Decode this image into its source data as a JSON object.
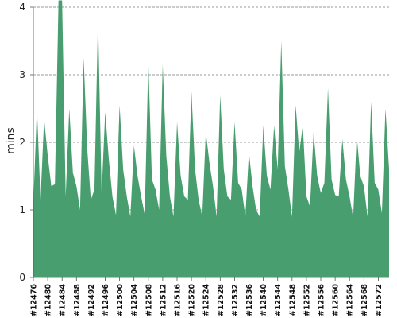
{
  "chart_data": {
    "type": "area",
    "ylabel": "mins",
    "xlabel": "",
    "title": "",
    "ylim": [
      0,
      4
    ],
    "yticks": [
      0,
      1,
      2,
      3,
      4
    ],
    "grid": "horizontal dashed",
    "legend": "none",
    "series_color": "#489e6e",
    "x_tick_labels": [
      "#12476",
      "#12480",
      "#12484",
      "#12488",
      "#12492",
      "#12496",
      "#12500",
      "#12504",
      "#12508",
      "#12512",
      "#12516",
      "#12520",
      "#12524",
      "#12528",
      "#12532",
      "#12536",
      "#12540",
      "#12544",
      "#12548",
      "#12552",
      "#12556",
      "#12560",
      "#12564",
      "#12568",
      "#12572"
    ],
    "x_range": [
      12476,
      12575
    ],
    "x": [
      12476,
      12477,
      12478,
      12479,
      12480,
      12481,
      12482,
      12483,
      12484,
      12485,
      12486,
      12487,
      12488,
      12489,
      12490,
      12491,
      12492,
      12493,
      12494,
      12495,
      12496,
      12497,
      12498,
      12499,
      12500,
      12501,
      12502,
      12503,
      12504,
      12505,
      12506,
      12507,
      12508,
      12509,
      12510,
      12511,
      12512,
      12513,
      12514,
      12515,
      12516,
      12517,
      12518,
      12519,
      12520,
      12521,
      12522,
      12523,
      12524,
      12525,
      12526,
      12527,
      12528,
      12529,
      12530,
      12531,
      12532,
      12533,
      12534,
      12535,
      12536,
      12537,
      12538,
      12539,
      12540,
      12541,
      12542,
      12543,
      12544,
      12545,
      12546,
      12547,
      12548,
      12549,
      12550,
      12551,
      12552,
      12553,
      12554,
      12555,
      12556,
      12557,
      12558,
      12559,
      12560,
      12561,
      12562,
      12563,
      12564,
      12565,
      12566,
      12567,
      12568,
      12569,
      12570,
      12571,
      12572,
      12573,
      12574,
      12575
    ],
    "values": [
      1.1,
      2.5,
      1.15,
      2.35,
      1.8,
      1.35,
      1.38,
      4.1,
      4.1,
      1.2,
      2.5,
      1.55,
      1.35,
      1.0,
      3.25,
      1.9,
      1.15,
      1.3,
      3.85,
      1.25,
      2.45,
      1.75,
      1.2,
      0.92,
      2.55,
      1.6,
      1.2,
      0.9,
      1.95,
      1.5,
      1.2,
      0.93,
      3.2,
      1.45,
      1.3,
      1.0,
      3.15,
      1.8,
      1.2,
      0.9,
      2.3,
      1.5,
      1.2,
      1.15,
      2.75,
      1.6,
      1.15,
      0.9,
      2.15,
      1.7,
      1.35,
      0.9,
      2.7,
      1.6,
      1.2,
      1.15,
      2.3,
      1.4,
      1.3,
      0.9,
      1.85,
      1.35,
      1.0,
      0.9,
      2.25,
      1.5,
      1.3,
      2.25,
      1.6,
      3.5,
      1.65,
      1.3,
      0.9,
      2.55,
      1.85,
      2.25,
      1.2,
      1.05,
      2.15,
      1.5,
      1.25,
      1.4,
      2.8,
      1.45,
      1.22,
      1.2,
      2.05,
      1.45,
      1.2,
      0.88,
      2.1,
      1.5,
      1.35,
      0.9,
      2.6,
      1.4,
      1.3,
      0.95,
      2.5,
      1.6
    ]
  }
}
